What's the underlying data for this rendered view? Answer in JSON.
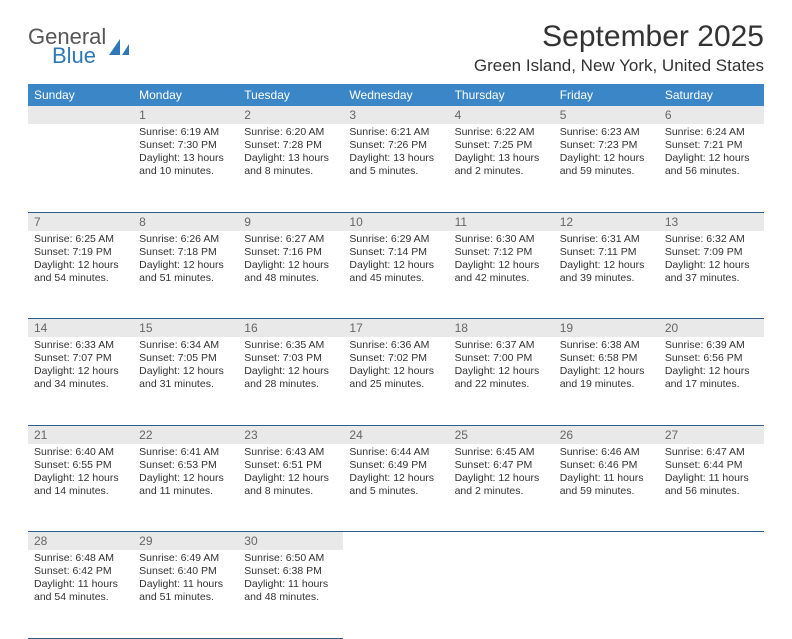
{
  "brand": {
    "word1": "General",
    "word2": "Blue",
    "color1": "#565656",
    "color2": "#2f78b7"
  },
  "title": "September 2025",
  "location": "Green Island, New York, United States",
  "header_bg": "#3b86c6",
  "header_fg": "#ffffff",
  "daynum_bg": "#e9e9e9",
  "row_border": "#2d5d8a",
  "daynames": [
    "Sunday",
    "Monday",
    "Tuesday",
    "Wednesday",
    "Thursday",
    "Friday",
    "Saturday"
  ],
  "weeks": [
    [
      null,
      {
        "n": "1",
        "sr": "Sunrise: 6:19 AM",
        "ss": "Sunset: 7:30 PM",
        "dl": "Daylight: 13 hours and 10 minutes."
      },
      {
        "n": "2",
        "sr": "Sunrise: 6:20 AM",
        "ss": "Sunset: 7:28 PM",
        "dl": "Daylight: 13 hours and 8 minutes."
      },
      {
        "n": "3",
        "sr": "Sunrise: 6:21 AM",
        "ss": "Sunset: 7:26 PM",
        "dl": "Daylight: 13 hours and 5 minutes."
      },
      {
        "n": "4",
        "sr": "Sunrise: 6:22 AM",
        "ss": "Sunset: 7:25 PM",
        "dl": "Daylight: 13 hours and 2 minutes."
      },
      {
        "n": "5",
        "sr": "Sunrise: 6:23 AM",
        "ss": "Sunset: 7:23 PM",
        "dl": "Daylight: 12 hours and 59 minutes."
      },
      {
        "n": "6",
        "sr": "Sunrise: 6:24 AM",
        "ss": "Sunset: 7:21 PM",
        "dl": "Daylight: 12 hours and 56 minutes."
      }
    ],
    [
      {
        "n": "7",
        "sr": "Sunrise: 6:25 AM",
        "ss": "Sunset: 7:19 PM",
        "dl": "Daylight: 12 hours and 54 minutes."
      },
      {
        "n": "8",
        "sr": "Sunrise: 6:26 AM",
        "ss": "Sunset: 7:18 PM",
        "dl": "Daylight: 12 hours and 51 minutes."
      },
      {
        "n": "9",
        "sr": "Sunrise: 6:27 AM",
        "ss": "Sunset: 7:16 PM",
        "dl": "Daylight: 12 hours and 48 minutes."
      },
      {
        "n": "10",
        "sr": "Sunrise: 6:29 AM",
        "ss": "Sunset: 7:14 PM",
        "dl": "Daylight: 12 hours and 45 minutes."
      },
      {
        "n": "11",
        "sr": "Sunrise: 6:30 AM",
        "ss": "Sunset: 7:12 PM",
        "dl": "Daylight: 12 hours and 42 minutes."
      },
      {
        "n": "12",
        "sr": "Sunrise: 6:31 AM",
        "ss": "Sunset: 7:11 PM",
        "dl": "Daylight: 12 hours and 39 minutes."
      },
      {
        "n": "13",
        "sr": "Sunrise: 6:32 AM",
        "ss": "Sunset: 7:09 PM",
        "dl": "Daylight: 12 hours and 37 minutes."
      }
    ],
    [
      {
        "n": "14",
        "sr": "Sunrise: 6:33 AM",
        "ss": "Sunset: 7:07 PM",
        "dl": "Daylight: 12 hours and 34 minutes."
      },
      {
        "n": "15",
        "sr": "Sunrise: 6:34 AM",
        "ss": "Sunset: 7:05 PM",
        "dl": "Daylight: 12 hours and 31 minutes."
      },
      {
        "n": "16",
        "sr": "Sunrise: 6:35 AM",
        "ss": "Sunset: 7:03 PM",
        "dl": "Daylight: 12 hours and 28 minutes."
      },
      {
        "n": "17",
        "sr": "Sunrise: 6:36 AM",
        "ss": "Sunset: 7:02 PM",
        "dl": "Daylight: 12 hours and 25 minutes."
      },
      {
        "n": "18",
        "sr": "Sunrise: 6:37 AM",
        "ss": "Sunset: 7:00 PM",
        "dl": "Daylight: 12 hours and 22 minutes."
      },
      {
        "n": "19",
        "sr": "Sunrise: 6:38 AM",
        "ss": "Sunset: 6:58 PM",
        "dl": "Daylight: 12 hours and 19 minutes."
      },
      {
        "n": "20",
        "sr": "Sunrise: 6:39 AM",
        "ss": "Sunset: 6:56 PM",
        "dl": "Daylight: 12 hours and 17 minutes."
      }
    ],
    [
      {
        "n": "21",
        "sr": "Sunrise: 6:40 AM",
        "ss": "Sunset: 6:55 PM",
        "dl": "Daylight: 12 hours and 14 minutes."
      },
      {
        "n": "22",
        "sr": "Sunrise: 6:41 AM",
        "ss": "Sunset: 6:53 PM",
        "dl": "Daylight: 12 hours and 11 minutes."
      },
      {
        "n": "23",
        "sr": "Sunrise: 6:43 AM",
        "ss": "Sunset: 6:51 PM",
        "dl": "Daylight: 12 hours and 8 minutes."
      },
      {
        "n": "24",
        "sr": "Sunrise: 6:44 AM",
        "ss": "Sunset: 6:49 PM",
        "dl": "Daylight: 12 hours and 5 minutes."
      },
      {
        "n": "25",
        "sr": "Sunrise: 6:45 AM",
        "ss": "Sunset: 6:47 PM",
        "dl": "Daylight: 12 hours and 2 minutes."
      },
      {
        "n": "26",
        "sr": "Sunrise: 6:46 AM",
        "ss": "Sunset: 6:46 PM",
        "dl": "Daylight: 11 hours and 59 minutes."
      },
      {
        "n": "27",
        "sr": "Sunrise: 6:47 AM",
        "ss": "Sunset: 6:44 PM",
        "dl": "Daylight: 11 hours and 56 minutes."
      }
    ],
    [
      {
        "n": "28",
        "sr": "Sunrise: 6:48 AM",
        "ss": "Sunset: 6:42 PM",
        "dl": "Daylight: 11 hours and 54 minutes."
      },
      {
        "n": "29",
        "sr": "Sunrise: 6:49 AM",
        "ss": "Sunset: 6:40 PM",
        "dl": "Daylight: 11 hours and 51 minutes."
      },
      {
        "n": "30",
        "sr": "Sunrise: 6:50 AM",
        "ss": "Sunset: 6:38 PM",
        "dl": "Daylight: 11 hours and 48 minutes."
      },
      null,
      null,
      null,
      null
    ]
  ]
}
